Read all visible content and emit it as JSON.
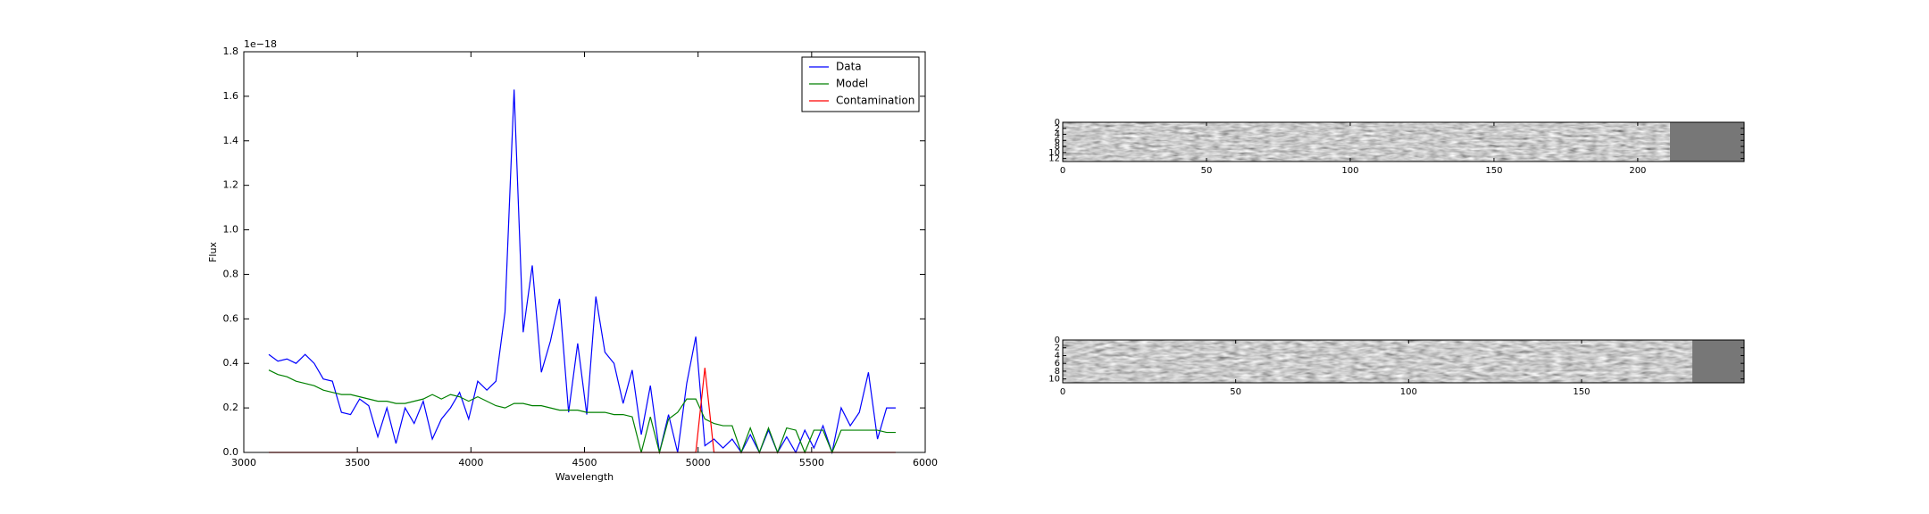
{
  "chart_data": [
    {
      "type": "line",
      "xlabel": "Wavelength",
      "ylabel": "Flux",
      "y_offset_label": "1e−18",
      "x": [
        3110,
        3150,
        3190,
        3230,
        3270,
        3310,
        3350,
        3390,
        3430,
        3470,
        3510,
        3550,
        3590,
        3630,
        3670,
        3710,
        3750,
        3790,
        3830,
        3870,
        3910,
        3950,
        3990,
        4030,
        4070,
        4110,
        4150,
        4190,
        4230,
        4270,
        4310,
        4350,
        4390,
        4430,
        4470,
        4510,
        4550,
        4590,
        4630,
        4670,
        4710,
        4750,
        4790,
        4830,
        4870,
        4910,
        4950,
        4990,
        5030,
        5070,
        5110,
        5150,
        5190,
        5230,
        5270,
        5310,
        5350,
        5390,
        5430,
        5470,
        5510,
        5550,
        5590,
        5630,
        5670,
        5710,
        5750,
        5790,
        5830,
        5870
      ],
      "series": [
        {
          "name": "Data",
          "color": "#0000ff",
          "values": [
            0.44,
            0.41,
            0.42,
            0.4,
            0.44,
            0.4,
            0.33,
            0.32,
            0.18,
            0.17,
            0.24,
            0.21,
            0.07,
            0.2,
            0.04,
            0.2,
            0.13,
            0.23,
            0.06,
            0.15,
            0.2,
            0.27,
            0.15,
            0.32,
            0.28,
            0.32,
            0.63,
            1.63,
            0.54,
            0.84,
            0.36,
            0.5,
            0.69,
            0.18,
            0.49,
            0.17,
            0.7,
            0.45,
            0.4,
            0.22,
            0.37,
            0.08,
            0.3,
            0.0,
            0.17,
            0.0,
            0.31,
            0.52,
            0.03,
            0.06,
            0.02,
            0.06,
            0.0,
            0.08,
            0.0,
            0.1,
            0.0,
            0.07,
            0.0,
            0.1,
            0.02,
            0.12,
            0.0,
            0.2,
            0.12,
            0.18,
            0.36,
            0.06,
            0.2,
            0.2
          ]
        },
        {
          "name": "Model",
          "color": "#008000",
          "values": [
            0.37,
            0.35,
            0.34,
            0.32,
            0.31,
            0.3,
            0.28,
            0.27,
            0.26,
            0.26,
            0.25,
            0.24,
            0.23,
            0.23,
            0.22,
            0.22,
            0.23,
            0.24,
            0.26,
            0.24,
            0.26,
            0.25,
            0.23,
            0.25,
            0.23,
            0.21,
            0.2,
            0.22,
            0.22,
            0.21,
            0.21,
            0.2,
            0.19,
            0.19,
            0.19,
            0.18,
            0.18,
            0.18,
            0.17,
            0.17,
            0.16,
            0.0,
            0.16,
            0.0,
            0.15,
            0.18,
            0.24,
            0.24,
            0.15,
            0.13,
            0.12,
            0.12,
            0.0,
            0.11,
            0.0,
            0.11,
            0.0,
            0.11,
            0.1,
            0.0,
            0.1,
            0.1,
            0.0,
            0.1,
            0.1,
            0.1,
            0.1,
            0.1,
            0.09,
            0.09
          ]
        },
        {
          "name": "Contamination",
          "color": "#ff0000",
          "values": [
            0,
            0,
            0,
            0,
            0,
            0,
            0,
            0,
            0,
            0,
            0,
            0,
            0,
            0,
            0,
            0,
            0,
            0,
            0,
            0,
            0,
            0,
            0,
            0,
            0,
            0,
            0,
            0,
            0,
            0,
            0,
            0,
            0,
            0,
            0,
            0,
            0,
            0,
            0,
            0,
            0,
            0,
            0,
            0,
            0,
            0,
            0,
            0,
            0.38,
            0,
            0,
            0,
            0,
            0,
            0,
            0,
            0,
            0,
            0,
            0,
            0,
            0,
            0,
            0,
            0,
            0,
            0,
            0,
            0,
            0
          ]
        }
      ],
      "xlim": [
        3000,
        6000
      ],
      "xticks": [
        3000,
        3500,
        4000,
        4500,
        5000,
        5500,
        6000
      ],
      "ylim": [
        0,
        1.8
      ],
      "yticks": [
        {
          "value": 0,
          "label": "0.0"
        },
        0.2,
        0.4,
        0.6,
        0.8,
        {
          "value": 1,
          "label": "1.0"
        },
        1.2,
        1.4,
        1.6,
        1.8
      ],
      "legend": "upper right"
    },
    {
      "type": "image",
      "xlim": [
        0,
        237
      ],
      "xticks": [
        0,
        50,
        100,
        150,
        200
      ],
      "ylim": [
        13,
        0
      ],
      "yticks": [
        0,
        2,
        4,
        6,
        8,
        10,
        12
      ]
    },
    {
      "type": "image",
      "xlim": [
        0,
        197
      ],
      "xticks": [
        0,
        50,
        100,
        150
      ],
      "ylim": [
        11,
        0
      ],
      "yticks": [
        0,
        2,
        4,
        6,
        8,
        10
      ]
    }
  ]
}
